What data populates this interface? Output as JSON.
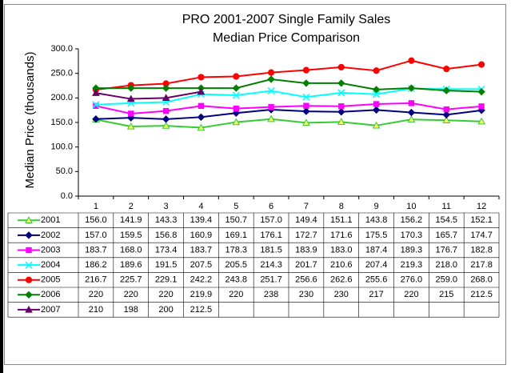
{
  "chart_data": {
    "type": "line",
    "title": [
      "PRO 2001-2007 Single Family Sales",
      "Median Price Comparison"
    ],
    "y_label": "Median Price (thousands)",
    "categories": [
      "1",
      "2",
      "3",
      "4",
      "5",
      "6",
      "7",
      "8",
      "9",
      "10",
      "11",
      "12"
    ],
    "ylim": [
      0,
      300
    ],
    "yticks": [
      {
        "value": 0,
        "label": "0.0"
      },
      {
        "value": 50,
        "label": "50.0"
      },
      {
        "value": 100,
        "label": "100.0"
      },
      {
        "value": 150,
        "label": "150.0"
      },
      {
        "value": 200,
        "label": "200.0"
      },
      {
        "value": 250,
        "label": "250.0"
      },
      {
        "value": 300,
        "label": "300.0"
      }
    ],
    "grid": false,
    "series": [
      {
        "name": "2001",
        "color": "#33cc33",
        "fill": "#ffff66",
        "marker": "triangle",
        "values": [
          156.0,
          141.9,
          143.3,
          139.4,
          150.7,
          157.0,
          149.4,
          151.1,
          143.8,
          156.2,
          154.5,
          152.1
        ],
        "value_labels": [
          "156.0",
          "141.9",
          "143.3",
          "139.4",
          "150.7",
          "157.0",
          "149.4",
          "151.1",
          "143.8",
          "156.2",
          "154.5",
          "152.1"
        ]
      },
      {
        "name": "2002",
        "color": "#000080",
        "fill": "#000080",
        "marker": "diamond",
        "values": [
          157.0,
          159.5,
          156.8,
          160.9,
          169.1,
          176.1,
          172.7,
          171.6,
          175.5,
          170.3,
          165.7,
          174.7
        ],
        "value_labels": [
          "157.0",
          "159.5",
          "156.8",
          "160.9",
          "169.1",
          "176.1",
          "172.7",
          "171.6",
          "175.5",
          "170.3",
          "165.7",
          "174.7"
        ]
      },
      {
        "name": "2003",
        "color": "#ff00ff",
        "fill": "#ff00ff",
        "marker": "square",
        "values": [
          183.7,
          168.0,
          173.4,
          183.7,
          178.3,
          181.5,
          183.9,
          183.0,
          187.4,
          189.3,
          176.7,
          182.8
        ],
        "value_labels": [
          "183.7",
          "168.0",
          "173.4",
          "183.7",
          "178.3",
          "181.5",
          "183.9",
          "183.0",
          "187.4",
          "189.3",
          "176.7",
          "182.8"
        ]
      },
      {
        "name": "2004",
        "color": "#00ffff",
        "fill": "none",
        "marker": "x",
        "values": [
          186.2,
          189.6,
          191.5,
          207.5,
          205.5,
          214.3,
          201.7,
          210.6,
          207.4,
          219.3,
          218.0,
          217.8
        ],
        "value_labels": [
          "186.2",
          "189.6",
          "191.5",
          "207.5",
          "205.5",
          "214.3",
          "201.7",
          "210.6",
          "207.4",
          "219.3",
          "218.0",
          "217.8"
        ]
      },
      {
        "name": "2005",
        "color": "#ff0000",
        "fill": "#ff0000",
        "marker": "circle",
        "values": [
          216.7,
          225.7,
          229.1,
          242.2,
          243.8,
          251.7,
          256.6,
          262.6,
          255.6,
          276.0,
          259.0,
          268.0
        ],
        "value_labels": [
          "216.7",
          "225.7",
          "229.1",
          "242.2",
          "243.8",
          "251.7",
          "256.6",
          "262.6",
          "255.6",
          "276.0",
          "259.0",
          "268.0"
        ]
      },
      {
        "name": "2006",
        "color": "#008000",
        "fill": "#008000",
        "marker": "diamond",
        "values": [
          220,
          220,
          220,
          219.9,
          220,
          238,
          230,
          230,
          217,
          220,
          215,
          212.5
        ]
      },
      {
        "name": "2007",
        "color": "#660066",
        "fill": "#660066",
        "marker": "triangle",
        "values": [
          210,
          198,
          200,
          212.5,
          null,
          null,
          null,
          null,
          null,
          null,
          null,
          null
        ]
      }
    ]
  }
}
